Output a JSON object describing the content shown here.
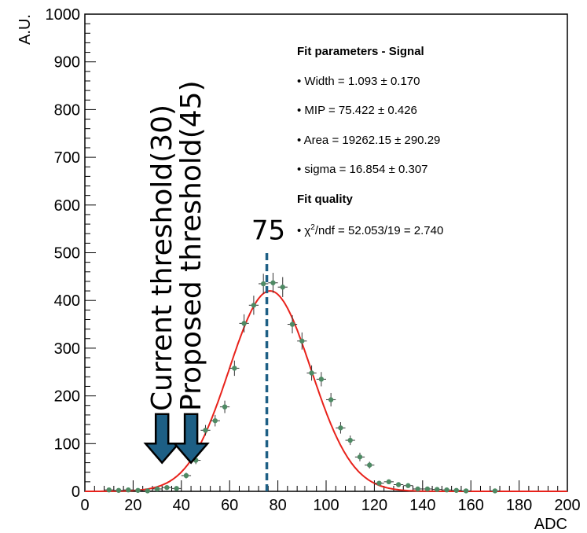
{
  "chart_data": {
    "type": "scatter",
    "xlabel": "ADC",
    "ylabel": "A.U.",
    "xlim": [
      0,
      200
    ],
    "ylim": [
      0,
      1000
    ],
    "x_ticks": [
      0,
      20,
      40,
      60,
      80,
      100,
      120,
      140,
      160,
      180,
      200
    ],
    "y_ticks": [
      0,
      100,
      200,
      300,
      400,
      500,
      600,
      700,
      800,
      900,
      1000
    ],
    "series": [
      {
        "kind": "points",
        "color": "#4e8a64",
        "points": [
          {
            "x": 10,
            "y": 3,
            "e": 2
          },
          {
            "x": 14,
            "y": 2,
            "e": 2
          },
          {
            "x": 18,
            "y": 3,
            "e": 2
          },
          {
            "x": 22,
            "y": 2,
            "e": 2
          },
          {
            "x": 26,
            "y": 1,
            "e": 2
          },
          {
            "x": 30,
            "y": 5,
            "e": 3
          },
          {
            "x": 34,
            "y": 8,
            "e": 3
          },
          {
            "x": 38,
            "y": 6,
            "e": 3
          },
          {
            "x": 42,
            "y": 33,
            "e": 6
          },
          {
            "x": 46,
            "y": 65,
            "e": 8
          },
          {
            "x": 50,
            "y": 128,
            "e": 11
          },
          {
            "x": 54,
            "y": 148,
            "e": 12
          },
          {
            "x": 58,
            "y": 177,
            "e": 13
          },
          {
            "x": 62,
            "y": 258,
            "e": 16
          },
          {
            "x": 66,
            "y": 352,
            "e": 19
          },
          {
            "x": 70,
            "y": 390,
            "e": 20
          },
          {
            "x": 74,
            "y": 435,
            "e": 21
          },
          {
            "x": 78,
            "y": 437,
            "e": 21
          },
          {
            "x": 82,
            "y": 428,
            "e": 21
          },
          {
            "x": 86,
            "y": 350,
            "e": 19
          },
          {
            "x": 90,
            "y": 315,
            "e": 18
          },
          {
            "x": 94,
            "y": 248,
            "e": 16
          },
          {
            "x": 98,
            "y": 235,
            "e": 15
          },
          {
            "x": 102,
            "y": 192,
            "e": 14
          },
          {
            "x": 106,
            "y": 133,
            "e": 12
          },
          {
            "x": 110,
            "y": 107,
            "e": 10
          },
          {
            "x": 114,
            "y": 72,
            "e": 9
          },
          {
            "x": 118,
            "y": 55,
            "e": 7
          },
          {
            "x": 122,
            "y": 17,
            "e": 4
          },
          {
            "x": 126,
            "y": 20,
            "e": 4
          },
          {
            "x": 130,
            "y": 14,
            "e": 4
          },
          {
            "x": 134,
            "y": 12,
            "e": 4
          },
          {
            "x": 138,
            "y": 5,
            "e": 2
          },
          {
            "x": 142,
            "y": 5,
            "e": 2
          },
          {
            "x": 146,
            "y": 4,
            "e": 2
          },
          {
            "x": 150,
            "y": 3,
            "e": 2
          },
          {
            "x": 154,
            "y": 2,
            "e": 2
          },
          {
            "x": 158,
            "y": 1,
            "e": 1
          },
          {
            "x": 170,
            "y": 1,
            "e": 1
          }
        ]
      },
      {
        "kind": "fit",
        "color": "#e8221b",
        "model": "landau-gauss",
        "mpv": 75.422,
        "sigma": 16.854,
        "peak_x": 78,
        "peak_y": 420
      }
    ],
    "annotations": {
      "mip_line_x": 75.422,
      "mip_line_top_y": 505,
      "mip_label": "75",
      "threshold_current_x": 32,
      "threshold_proposed_x": 44,
      "threshold_current_label": "Current threshold(30)",
      "threshold_proposed_label": "Proposed threshold(45)",
      "arrow_color": "#1d5f85"
    },
    "stats": {
      "signal_heading": "Fit parameters - Signal",
      "lines": [
        "• Width = 1.093   ± 0.170",
        "• MIP = 75.422   ± 0.426",
        "• Area = 19262.15   ± 290.29",
        "• sigma = 16.854   ± 0.307"
      ],
      "quality_heading": "Fit quality",
      "chi_bullet": "• ",
      "chi_symbol": "χ",
      "chi_sup": "2",
      "chi_rest": "/ndf = 52.053/19 = 2.740"
    }
  }
}
